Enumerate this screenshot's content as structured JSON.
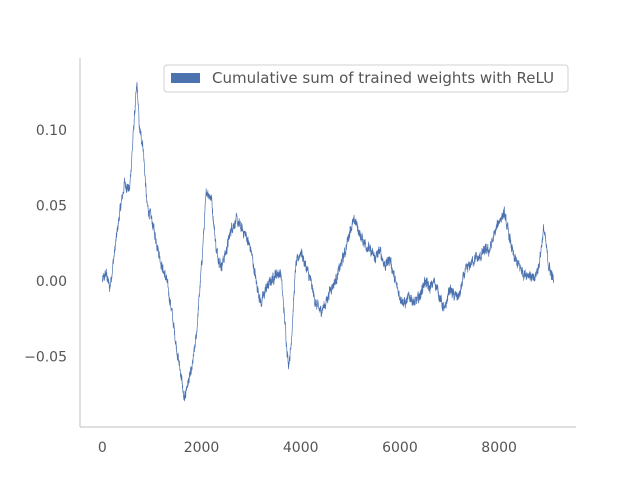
{
  "chart_data": {
    "type": "line",
    "title": "",
    "xlabel": "",
    "ylabel": "",
    "xlim": [
      -450,
      9550
    ],
    "ylim": [
      -0.0965,
      0.1475
    ],
    "xticks": [
      0,
      2000,
      4000,
      6000,
      8000
    ],
    "yticks": [
      -0.05,
      0.0,
      0.05,
      0.1
    ],
    "xtick_labels": [
      "0",
      "2000",
      "4000",
      "6000",
      "8000"
    ],
    "ytick_labels": [
      "−0.05",
      "0.00",
      "0.05",
      "0.10"
    ],
    "legend_position": "top-right",
    "grid": false,
    "series": [
      {
        "name": "Cumulative sum of trained weights with ReLU",
        "color": "#4c72b0",
        "n_points": 9100,
        "noise_amplitude": 0.006,
        "anchors": [
          [
            0,
            0.0
          ],
          [
            80,
            0.005
          ],
          [
            150,
            -0.005
          ],
          [
            250,
            0.02
          ],
          [
            350,
            0.045
          ],
          [
            450,
            0.065
          ],
          [
            550,
            0.06
          ],
          [
            650,
            0.11
          ],
          [
            700,
            0.13
          ],
          [
            750,
            0.1
          ],
          [
            820,
            0.09
          ],
          [
            900,
            0.05
          ],
          [
            1000,
            0.04
          ],
          [
            1100,
            0.025
          ],
          [
            1200,
            0.01
          ],
          [
            1300,
            0.0
          ],
          [
            1400,
            -0.02
          ],
          [
            1500,
            -0.045
          ],
          [
            1600,
            -0.065
          ],
          [
            1650,
            -0.08
          ],
          [
            1700,
            -0.07
          ],
          [
            1800,
            -0.06
          ],
          [
            1900,
            -0.035
          ],
          [
            2000,
            0.01
          ],
          [
            2100,
            0.06
          ],
          [
            2200,
            0.055
          ],
          [
            2300,
            0.02
          ],
          [
            2400,
            0.01
          ],
          [
            2500,
            0.02
          ],
          [
            2600,
            0.035
          ],
          [
            2700,
            0.04
          ],
          [
            2800,
            0.035
          ],
          [
            2900,
            0.03
          ],
          [
            3000,
            0.02
          ],
          [
            3100,
            0.0
          ],
          [
            3200,
            -0.015
          ],
          [
            3300,
            -0.005
          ],
          [
            3400,
            0.0
          ],
          [
            3500,
            0.005
          ],
          [
            3600,
            0.005
          ],
          [
            3700,
            -0.035
          ],
          [
            3750,
            -0.055
          ],
          [
            3800,
            -0.045
          ],
          [
            3900,
            0.01
          ],
          [
            4000,
            0.02
          ],
          [
            4100,
            0.01
          ],
          [
            4200,
            0.0
          ],
          [
            4300,
            -0.015
          ],
          [
            4400,
            -0.02
          ],
          [
            4500,
            -0.015
          ],
          [
            4600,
            -0.005
          ],
          [
            4700,
            0.0
          ],
          [
            4800,
            0.01
          ],
          [
            4900,
            0.02
          ],
          [
            5000,
            0.035
          ],
          [
            5100,
            0.04
          ],
          [
            5200,
            0.03
          ],
          [
            5300,
            0.025
          ],
          [
            5400,
            0.02
          ],
          [
            5500,
            0.015
          ],
          [
            5600,
            0.02
          ],
          [
            5700,
            0.01
          ],
          [
            5800,
            0.015
          ],
          [
            5900,
            0.0
          ],
          [
            6000,
            -0.01
          ],
          [
            6100,
            -0.015
          ],
          [
            6200,
            -0.01
          ],
          [
            6300,
            -0.015
          ],
          [
            6400,
            -0.01
          ],
          [
            6500,
            0.0
          ],
          [
            6600,
            -0.005
          ],
          [
            6700,
            0.0
          ],
          [
            6800,
            -0.01
          ],
          [
            6900,
            -0.02
          ],
          [
            7000,
            -0.005
          ],
          [
            7100,
            -0.01
          ],
          [
            7200,
            -0.01
          ],
          [
            7300,
            0.005
          ],
          [
            7400,
            0.01
          ],
          [
            7500,
            0.015
          ],
          [
            7600,
            0.015
          ],
          [
            7700,
            0.02
          ],
          [
            7800,
            0.02
          ],
          [
            7900,
            0.03
          ],
          [
            8000,
            0.04
          ],
          [
            8100,
            0.045
          ],
          [
            8200,
            0.03
          ],
          [
            8300,
            0.015
          ],
          [
            8400,
            0.01
          ],
          [
            8500,
            0.005
          ],
          [
            8600,
            0.005
          ],
          [
            8700,
            0.0
          ],
          [
            8800,
            0.01
          ],
          [
            8900,
            0.035
          ],
          [
            9000,
            0.01
          ],
          [
            9100,
            0.0
          ]
        ]
      }
    ]
  }
}
